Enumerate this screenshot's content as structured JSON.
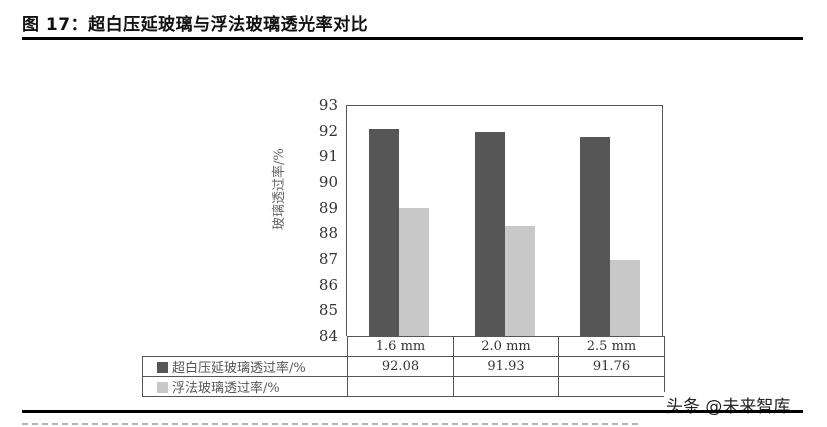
{
  "figure": {
    "title": "图 17：超白压延玻璃与浮法玻璃透光率对比"
  },
  "watermark": "头条 @未来智库",
  "colors": {
    "ultra_white": "#565656",
    "float": "#c8c8c8"
  },
  "chart_data": {
    "type": "bar",
    "title": "",
    "xlabel": "",
    "ylabel": "玻璃透过率/%",
    "ylim": [
      84,
      93
    ],
    "yticks": [
      84,
      85,
      86,
      87,
      88,
      89,
      90,
      91,
      92,
      93
    ],
    "categories": [
      "1.6 mm",
      "2.0 mm",
      "2.5 mm"
    ],
    "series": [
      {
        "name": "超白压延玻璃透过率/%",
        "values": [
          92.08,
          91.93,
          91.76
        ],
        "color": "#565656"
      },
      {
        "name": "浮法玻璃透过率/%",
        "values": [
          88.97,
          88.28,
          86.98
        ],
        "color": "#c8c8c8"
      }
    ],
    "data_table": {
      "rows": [
        {
          "label": "超白压延玻璃透过率/%",
          "cells": [
            "92.08",
            "91.93",
            "91.76"
          ]
        },
        {
          "label": "浮法玻璃透过率/%",
          "cells": [
            "",
            "",
            ""
          ]
        }
      ]
    },
    "grid": false,
    "legend_position": "data-table"
  }
}
